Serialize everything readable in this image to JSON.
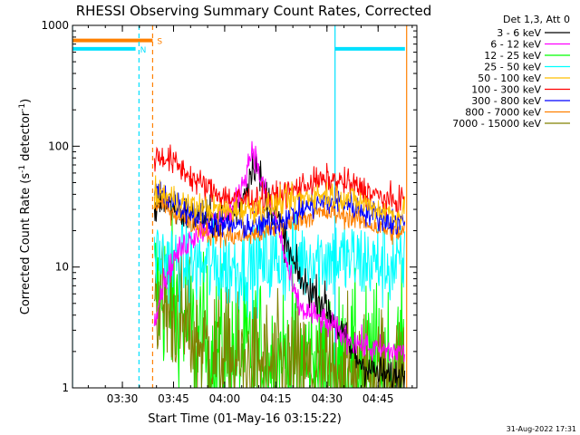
{
  "chart_data": {
    "type": "line",
    "title": "RHESSI Observing Summary Count Rates, Corrected",
    "xlabel": "Start Time (01-May-16 03:15:22)",
    "ylabel_main": "Corrected Count Rate (s",
    "ylabel_exp1": "-1",
    "ylabel_mid": " detector",
    "ylabel_exp2": "-1",
    "ylabel_end": ")",
    "yscale": "log",
    "ylim": [
      1,
      1000
    ],
    "xlim_min": [
      0,
      101
    ],
    "x_unit": "minutes after 03:15:22",
    "x_ticks": [
      {
        "min": 14.63,
        "label": "03:30"
      },
      {
        "min": 29.63,
        "label": "03:45"
      },
      {
        "min": 44.63,
        "label": "04:00"
      },
      {
        "min": 59.63,
        "label": "04:15"
      },
      {
        "min": 74.63,
        "label": "04:30"
      },
      {
        "min": 89.63,
        "label": "04:45"
      }
    ],
    "y_ticks": [
      {
        "v": 1,
        "label": "1"
      },
      {
        "v": 10,
        "label": "10"
      },
      {
        "v": 100,
        "label": "100"
      },
      {
        "v": 1000,
        "label": "1000"
      }
    ],
    "legend_header": "Det 1,3, Att 0",
    "legend_position": "top-right, outside plot",
    "footer_date": "31-Aug-2022 17:31",
    "flags": [
      {
        "label": "S",
        "color": "#ff8000",
        "y": 750,
        "start_min": 0,
        "end_min": 23.5
      },
      {
        "label": "N",
        "color": "#00e0ff",
        "y": 640,
        "start_min": 0,
        "end_min": 18.5
      },
      {
        "label": "",
        "color": "#00e0ff",
        "y": 640,
        "start_min": 77,
        "end_min": 97.5
      }
    ],
    "vlines": [
      {
        "min": 0,
        "color": "#00e0ff",
        "dash": false
      },
      {
        "min": 19.5,
        "color": "#00e0ff",
        "dash": true
      },
      {
        "min": 23.5,
        "color": "#ff8000",
        "dash": true
      },
      {
        "min": 77,
        "color": "#00e0ff",
        "dash": false
      },
      {
        "min": 98.0,
        "color": "#ff8000",
        "dash": false
      }
    ],
    "series": [
      {
        "name": "3 - 6 keV",
        "color": "#000000",
        "noise": 0.08,
        "points": [
          [
            24,
            30
          ],
          [
            26,
            38
          ],
          [
            30,
            30
          ],
          [
            35,
            26
          ],
          [
            40,
            25
          ],
          [
            44,
            24
          ],
          [
            48,
            30
          ],
          [
            51,
            45
          ],
          [
            52.5,
            65
          ],
          [
            53.5,
            75
          ],
          [
            55,
            55
          ],
          [
            57,
            38
          ],
          [
            59,
            30
          ],
          [
            62,
            18
          ],
          [
            65,
            10
          ],
          [
            68,
            7
          ],
          [
            71,
            6
          ],
          [
            74,
            5
          ],
          [
            77,
            3.5
          ],
          [
            80,
            2.5
          ],
          [
            83,
            1.8
          ],
          [
            86,
            1.5
          ],
          [
            90,
            1.3
          ],
          [
            94,
            1.2
          ],
          [
            97.5,
            1.3
          ]
        ]
      },
      {
        "name": "6 - 12 keV",
        "color": "#ff00ff",
        "noise": 0.06,
        "points": [
          [
            24,
            4
          ],
          [
            27,
            8
          ],
          [
            30,
            12
          ],
          [
            35,
            18
          ],
          [
            40,
            22
          ],
          [
            44,
            26
          ],
          [
            47,
            30
          ],
          [
            50,
            50
          ],
          [
            52,
            80
          ],
          [
            52.8,
            98
          ],
          [
            53.7,
            80
          ],
          [
            55,
            55
          ],
          [
            57,
            38
          ],
          [
            59,
            28
          ],
          [
            61,
            18
          ],
          [
            63,
            10
          ],
          [
            65,
            6
          ],
          [
            67,
            4.5
          ],
          [
            69,
            4.2
          ],
          [
            72,
            3.8
          ],
          [
            75,
            3.3
          ],
          [
            79,
            2.8
          ],
          [
            83,
            2.4
          ],
          [
            88,
            2.1
          ],
          [
            93,
            2.0
          ],
          [
            97.5,
            2.0
          ]
        ]
      },
      {
        "name": "12 - 25 keV",
        "color": "#00ff00",
        "noise": 0.35,
        "points": [
          [
            24,
            7
          ],
          [
            27,
            6
          ],
          [
            30,
            5
          ],
          [
            33,
            3.5
          ],
          [
            36,
            2.5
          ],
          [
            40,
            2.0
          ],
          [
            44,
            1.9
          ],
          [
            48,
            1.8
          ],
          [
            52,
            1.8
          ],
          [
            56,
            1.7
          ],
          [
            60,
            1.7
          ],
          [
            64,
            1.6
          ],
          [
            68,
            1.6
          ],
          [
            72,
            1.5
          ],
          [
            76,
            1.5
          ],
          [
            80,
            1.4
          ],
          [
            84,
            1.4
          ],
          [
            88,
            1.4
          ],
          [
            92,
            1.4
          ],
          [
            97.5,
            1.5
          ]
        ]
      },
      {
        "name": "25 - 50 keV",
        "color": "#00ffff",
        "noise": 0.18,
        "points": [
          [
            24,
            13
          ],
          [
            27,
            12
          ],
          [
            30,
            11
          ],
          [
            35,
            10.5
          ],
          [
            40,
            10.0
          ],
          [
            45,
            10.0
          ],
          [
            50,
            10.0
          ],
          [
            55,
            10.5
          ],
          [
            60,
            11
          ],
          [
            65,
            11.5
          ],
          [
            70,
            12.0
          ],
          [
            75,
            12.0
          ],
          [
            80,
            11.5
          ],
          [
            85,
            11.0
          ],
          [
            90,
            10.5
          ],
          [
            95,
            10.0
          ],
          [
            97.5,
            10.0
          ]
        ]
      },
      {
        "name": "50 - 100 keV",
        "color": "#ffbf00",
        "noise": 0.06,
        "points": [
          [
            24,
            38
          ],
          [
            27,
            40
          ],
          [
            30,
            36
          ],
          [
            35,
            32
          ],
          [
            40,
            30
          ],
          [
            45,
            29
          ],
          [
            50,
            30
          ],
          [
            55,
            31
          ],
          [
            60,
            33
          ],
          [
            65,
            36
          ],
          [
            70,
            39
          ],
          [
            75,
            40
          ],
          [
            80,
            38
          ],
          [
            85,
            34
          ],
          [
            90,
            30
          ],
          [
            95,
            27
          ],
          [
            97.5,
            28
          ]
        ]
      },
      {
        "name": "100 - 300 keV",
        "color": "#ff0000",
        "noise": 0.06,
        "points": [
          [
            24,
            80
          ],
          [
            27,
            82
          ],
          [
            30,
            72
          ],
          [
            33,
            62
          ],
          [
            36,
            52
          ],
          [
            40,
            44
          ],
          [
            45,
            38
          ],
          [
            50,
            36
          ],
          [
            55,
            36
          ],
          [
            60,
            38
          ],
          [
            65,
            44
          ],
          [
            70,
            50
          ],
          [
            75,
            52
          ],
          [
            80,
            50
          ],
          [
            85,
            44
          ],
          [
            90,
            38
          ],
          [
            95,
            34
          ],
          [
            97.5,
            38
          ]
        ]
      },
      {
        "name": "300 - 800 keV",
        "color": "#0000ff",
        "noise": 0.06,
        "points": [
          [
            24,
            42
          ],
          [
            27,
            40
          ],
          [
            30,
            34
          ],
          [
            35,
            28
          ],
          [
            40,
            24
          ],
          [
            45,
            22
          ],
          [
            50,
            22
          ],
          [
            55,
            22
          ],
          [
            60,
            24
          ],
          [
            65,
            28
          ],
          [
            70,
            32
          ],
          [
            75,
            35
          ],
          [
            80,
            34
          ],
          [
            85,
            30
          ],
          [
            90,
            26
          ],
          [
            95,
            23
          ],
          [
            97.5,
            24
          ]
        ]
      },
      {
        "name": "800 - 7000 keV",
        "color": "#ff8000",
        "noise": 0.05,
        "points": [
          [
            24,
            32
          ],
          [
            27,
            33
          ],
          [
            30,
            28
          ],
          [
            35,
            24
          ],
          [
            40,
            19
          ],
          [
            45,
            18
          ],
          [
            50,
            18
          ],
          [
            55,
            19
          ],
          [
            60,
            21
          ],
          [
            65,
            24
          ],
          [
            70,
            27
          ],
          [
            75,
            28
          ],
          [
            80,
            27
          ],
          [
            85,
            24
          ],
          [
            90,
            21
          ],
          [
            95,
            19
          ],
          [
            97.5,
            20
          ]
        ]
      },
      {
        "name": "7000 - 15000 keV",
        "color": "#808000",
        "noise": 0.28,
        "points": [
          [
            24,
            6
          ],
          [
            27,
            5
          ],
          [
            30,
            4.2
          ],
          [
            33,
            3.2
          ],
          [
            36,
            2.5
          ],
          [
            40,
            2.0
          ],
          [
            44,
            1.8
          ],
          [
            48,
            1.6
          ],
          [
            52,
            1.5
          ],
          [
            56,
            1.5
          ],
          [
            60,
            1.4
          ],
          [
            64,
            1.4
          ],
          [
            68,
            1.3
          ],
          [
            72,
            1.3
          ],
          [
            76,
            1.3
          ],
          [
            80,
            1.3
          ],
          [
            84,
            1.3
          ],
          [
            88,
            1.3
          ],
          [
            92,
            1.3
          ],
          [
            97.5,
            1.3
          ]
        ]
      }
    ]
  }
}
